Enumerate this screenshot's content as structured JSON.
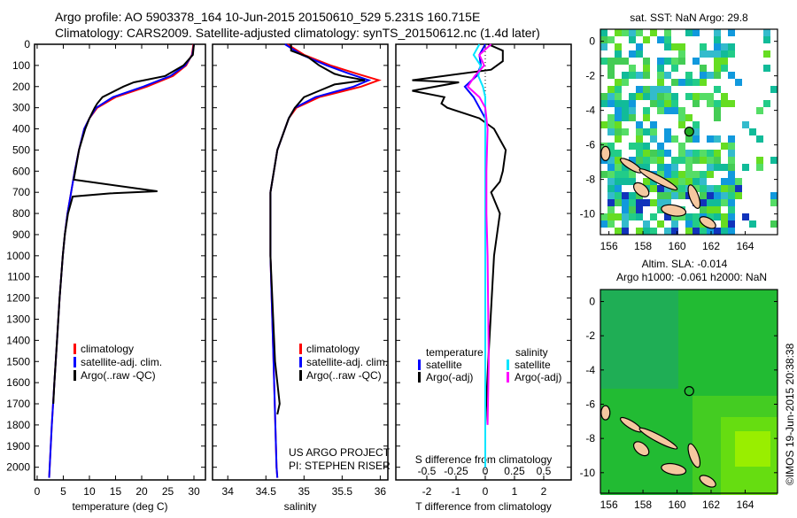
{
  "title_line1": "Argo profile: AO 5903378_164 10-Jun-2015 20150610_529 5.231S 160.715E",
  "title_line2": "Climatology: CARS2009. Satellite-adjusted climatology: synTS_20150612.nc (1.4d later)",
  "credit": "©IMOS 19-Jun-2015 20:38:38",
  "colors": {
    "climatology": "#ff0000",
    "satellite": "#0000ff",
    "argo": "#000000",
    "sal_satellite": "#00e5ff",
    "sal_argo": "#ff00ff"
  },
  "chart_data": [
    {
      "type": "line",
      "name": "temperature",
      "xlabel": "temperature (deg C)",
      "ylabel": "",
      "xlim": [
        -0.5,
        32.2
      ],
      "ylim": [
        2060,
        0
      ],
      "xticks": [
        0,
        5,
        10,
        15,
        20,
        25,
        30
      ],
      "yticks": [
        0,
        100,
        200,
        300,
        400,
        500,
        600,
        700,
        800,
        900,
        1000,
        1100,
        1200,
        1300,
        1400,
        1500,
        1600,
        1700,
        1800,
        1900,
        2000
      ],
      "legend": [
        "climatology",
        "satellite-adj. clim.",
        "Argo(..raw -QC)"
      ],
      "legend_position": "lower-center",
      "series": [
        {
          "name": "climatology",
          "color": "#ff0000",
          "depth": [
            0,
            50,
            100,
            150,
            200,
            250,
            300,
            350,
            400,
            500,
            600,
            700,
            800,
            900,
            1000,
            1200,
            1400,
            1600,
            1800,
            2000,
            2050
          ],
          "values": [
            29.9,
            29.6,
            28.5,
            26,
            21,
            15,
            11.5,
            10,
            9,
            8,
            7.2,
            6.5,
            5.8,
            5.3,
            4.9,
            4.3,
            3.8,
            3.3,
            2.8,
            2.4,
            2.3
          ]
        },
        {
          "name": "satellite-adj. clim.",
          "color": "#0000ff",
          "depth": [
            0,
            50,
            100,
            150,
            200,
            250,
            300,
            350,
            400,
            500,
            600,
            700,
            800,
            900,
            1000,
            1200,
            1400,
            1600,
            1800,
            2000,
            2050
          ],
          "values": [
            30,
            29.7,
            28.3,
            25.5,
            20.3,
            14.5,
            11.3,
            10,
            9,
            8,
            7.2,
            6.5,
            5.8,
            5.3,
            4.9,
            4.3,
            3.8,
            3.3,
            2.8,
            2.4,
            2.3
          ]
        },
        {
          "name": "Argo(..raw -QC)",
          "color": "#000000",
          "depth": [
            0,
            50,
            100,
            150,
            180,
            200,
            250,
            280,
            300,
            350,
            400,
            500,
            600,
            640,
            695,
            705,
            720,
            800,
            900,
            1000,
            1200,
            1400,
            1600,
            1700
          ],
          "values": [
            30,
            29.8,
            28,
            24.5,
            18.5,
            16.5,
            12.5,
            11.5,
            11,
            10,
            9.2,
            8,
            7.3,
            7,
            23,
            14,
            6.8,
            5.9,
            5.3,
            4.9,
            4.3,
            3.8,
            3.3,
            3.1
          ]
        }
      ]
    },
    {
      "type": "line",
      "name": "salinity",
      "xlabel": "salinity",
      "xlim": [
        33.8,
        36.1
      ],
      "ylim": [
        2060,
        0
      ],
      "xticks": [
        34,
        34.5,
        35,
        35.5,
        36
      ],
      "legend": [
        "climatology",
        "satellite-adj. clim.",
        "Argo(..raw -QC)"
      ],
      "annotation": [
        "US ARGO PROJECT",
        "PI: STEPHEN RISER"
      ],
      "series": [
        {
          "name": "climatology",
          "color": "#ff0000",
          "depth": [
            0,
            50,
            100,
            140,
            170,
            200,
            250,
            300,
            350,
            400,
            500,
            700,
            1000,
            1500,
            2000,
            2050
          ],
          "values": [
            34.78,
            35.0,
            35.35,
            35.7,
            35.98,
            35.75,
            35.2,
            34.9,
            34.8,
            34.75,
            34.65,
            34.56,
            34.56,
            34.6,
            34.64,
            34.65
          ]
        },
        {
          "name": "satellite-adj. clim.",
          "color": "#0000ff",
          "depth": [
            0,
            50,
            100,
            140,
            170,
            200,
            250,
            300,
            350,
            400,
            500,
            700,
            1000,
            1500,
            2000,
            2050
          ],
          "values": [
            34.75,
            34.97,
            35.3,
            35.6,
            35.85,
            35.65,
            35.15,
            34.88,
            34.8,
            34.75,
            34.65,
            34.56,
            34.56,
            34.6,
            34.64,
            34.65
          ]
        },
        {
          "name": "Argo(..raw -QC)",
          "color": "#000000",
          "depth": [
            0,
            30,
            60,
            100,
            140,
            150,
            170,
            190,
            220,
            250,
            300,
            350,
            400,
            500,
            700,
            1000,
            1500,
            1700,
            1750
          ],
          "values": [
            34.83,
            34.83,
            35.05,
            35.2,
            35.4,
            35.5,
            35.8,
            35.4,
            35.2,
            35.0,
            34.88,
            34.8,
            34.75,
            34.65,
            34.56,
            34.56,
            34.62,
            34.68,
            34.65
          ]
        }
      ]
    },
    {
      "type": "line",
      "name": "difference",
      "xlabel": "T difference from climatology",
      "xlabel_top": "S difference from climatology",
      "xlim": [
        -3.06,
        2.94
      ],
      "ylim": [
        2060,
        0
      ],
      "xticks": [
        -2,
        -1,
        0,
        1,
        2
      ],
      "xticks_S": [
        -0.5,
        -0.25,
        0,
        0.25,
        0.5
      ],
      "legend_headers": [
        "temperature",
        "salinity"
      ],
      "legend": [
        "satellite",
        "Argo(-adj)",
        "satellite",
        "Argo(-adj)"
      ],
      "series": [
        {
          "name": "T satellite",
          "color": "#0000ff",
          "axis": "T",
          "depth": [
            0,
            50,
            100,
            150,
            200,
            250,
            300,
            350,
            400,
            500,
            600,
            800,
            1000,
            1500,
            2000
          ],
          "values": [
            0,
            -0.2,
            -0.15,
            -0.3,
            -0.7,
            -0.4,
            -0.2,
            0,
            0,
            0,
            0,
            0,
            0,
            0,
            0
          ]
        },
        {
          "name": "T Argo(-adj)",
          "color": "#000000",
          "axis": "T",
          "depth": [
            0,
            30,
            80,
            120,
            170,
            180,
            220,
            250,
            280,
            300,
            350,
            400,
            450,
            500,
            600,
            650,
            700,
            800,
            900,
            1000,
            1500,
            1800
          ],
          "values": [
            0.1,
            0.6,
            0.6,
            0.2,
            -2.5,
            -0.9,
            -2.5,
            -1.4,
            -1.5,
            -1.3,
            -0.2,
            0.3,
            0.5,
            0.7,
            0.6,
            0.5,
            0.2,
            0.5,
            0.4,
            0.3,
            0.1,
            0
          ]
        },
        {
          "name": "S satellite",
          "color": "#00e5ff",
          "axis": "S",
          "depth": [
            0,
            50,
            100,
            150,
            200,
            250,
            300,
            400,
            600,
            800,
            1000,
            1500,
            2000
          ],
          "values": [
            -0.05,
            -0.1,
            -0.04,
            -0.06,
            -0.02,
            0,
            0,
            0,
            0,
            0,
            0,
            0,
            0
          ]
        },
        {
          "name": "S Argo(-adj)",
          "color": "#ff00ff",
          "axis": "S",
          "depth": [
            0,
            50,
            100,
            150,
            200,
            250,
            300,
            400,
            600,
            800,
            1000,
            1500,
            1800
          ],
          "values": [
            0.05,
            -0.05,
            -0.01,
            -0.09,
            -0.15,
            -0.05,
            0.0,
            0.02,
            0.01,
            0.01,
            0.02,
            0.03,
            0.02
          ]
        }
      ]
    },
    {
      "type": "heatmap",
      "name": "sst-map",
      "title": "sat. SST: NaN Argo: 29.8",
      "xlim": [
        155.5,
        165.9
      ],
      "ylim": [
        -11.2,
        0.7
      ],
      "xticks": [
        156,
        158,
        160,
        162,
        164
      ],
      "yticks": [
        0,
        -2,
        -4,
        -6,
        -8,
        -10
      ],
      "argo_position": [
        160.715,
        -5.231
      ]
    },
    {
      "type": "heatmap",
      "name": "sla-map",
      "title1": "Altim. SLA: -0.014",
      "title2": "Argo h1000: -0.061 h2000: NaN",
      "xlim": [
        155.5,
        165.9
      ],
      "ylim": [
        -11.2,
        0.7
      ],
      "xticks": [
        156,
        158,
        160,
        162,
        164
      ],
      "yticks": [
        0,
        -2,
        -4,
        -6,
        -8,
        -10
      ],
      "argo_position": [
        160.715,
        -5.231
      ]
    }
  ]
}
